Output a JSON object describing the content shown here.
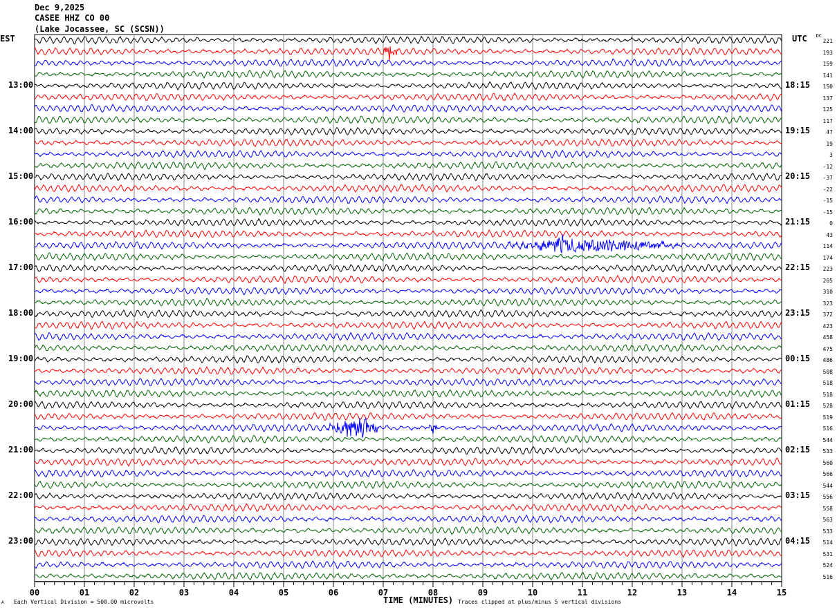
{
  "header": {
    "date": "Dec 9,2025",
    "station": "CASEE HHZ CO 00",
    "location": "(Lake Jocassee, SC (SCSN))"
  },
  "left_tz": "EST",
  "right_tz": "UTC",
  "dc_label": "DC",
  "footer": {
    "scale": "Each Vertical Division =  500.00 microvolts",
    "xlabel": "TIME (MINUTES)",
    "clip": "Traces clipped at plus/minus 5 vertical divisions",
    "logo": "A"
  },
  "chart_data": {
    "type": "line",
    "title": "CASEE HHZ CO 00 helicorder",
    "xlabel": "TIME (MINUTES)",
    "xlim": [
      0,
      15
    ],
    "x_ticks": [
      "00",
      "01",
      "02",
      "03",
      "04",
      "05",
      "06",
      "07",
      "08",
      "09",
      "10",
      "11",
      "12",
      "13",
      "14",
      "15"
    ],
    "colors": [
      "#000000",
      "#ff0000",
      "#0000ff",
      "#006400"
    ],
    "est_labels": [
      {
        "row": 4,
        "text": "13:00"
      },
      {
        "row": 8,
        "text": "14:00"
      },
      {
        "row": 12,
        "text": "15:00"
      },
      {
        "row": 16,
        "text": "16:00"
      },
      {
        "row": 20,
        "text": "17:00"
      },
      {
        "row": 24,
        "text": "18:00"
      },
      {
        "row": 28,
        "text": "19:00"
      },
      {
        "row": 32,
        "text": "20:00"
      },
      {
        "row": 36,
        "text": "21:00"
      },
      {
        "row": 40,
        "text": "22:00"
      },
      {
        "row": 44,
        "text": "23:00"
      }
    ],
    "utc_labels": [
      {
        "row": 4,
        "text": "18:15"
      },
      {
        "row": 8,
        "text": "19:15"
      },
      {
        "row": 12,
        "text": "20:15"
      },
      {
        "row": 16,
        "text": "21:15"
      },
      {
        "row": 20,
        "text": "22:15"
      },
      {
        "row": 24,
        "text": "23:15"
      },
      {
        "row": 28,
        "text": "00:15"
      },
      {
        "row": 32,
        "text": "01:15"
      },
      {
        "row": 36,
        "text": "02:15"
      },
      {
        "row": 40,
        "text": "03:15"
      },
      {
        "row": 44,
        "text": "04:15"
      }
    ],
    "dc_offsets": [
      "221",
      "193",
      "159",
      "141",
      "150",
      "137",
      "125",
      "117",
      "47",
      "19",
      "3",
      "-12",
      "-37",
      "-22",
      "-15",
      "-15",
      "0",
      "43",
      "114",
      "174",
      "223",
      "265",
      "310",
      "323",
      "372",
      "423",
      "458",
      "475",
      "486",
      "508",
      "518",
      "518",
      "528",
      "519",
      "516",
      "544",
      "533",
      "560",
      "566",
      "544",
      "556",
      "558",
      "563",
      "533",
      "514",
      "531",
      "524",
      "516"
    ],
    "events": [
      {
        "row": 1,
        "start_min": 7.0,
        "end_min": 7.3,
        "amp_div": 1.2
      },
      {
        "row": 18,
        "start_min": 9.5,
        "end_min": 13.0,
        "amp_div": 0.9
      },
      {
        "row": 18,
        "start_min": 10.5,
        "end_min": 10.7,
        "amp_div": 1.5
      },
      {
        "row": 34,
        "start_min": 5.9,
        "end_min": 6.9,
        "amp_div": 1.6
      },
      {
        "row": 34,
        "start_min": 7.9,
        "end_min": 8.1,
        "amp_div": 0.6
      }
    ]
  }
}
